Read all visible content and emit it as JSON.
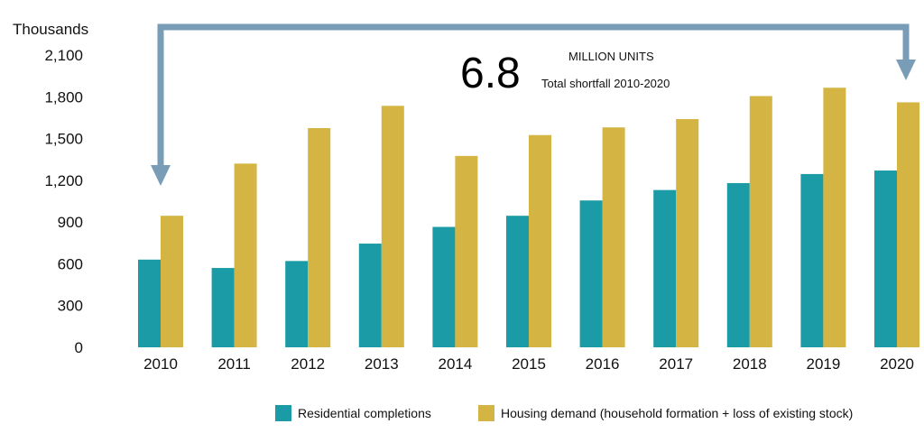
{
  "chart_data": {
    "type": "bar",
    "ylabel": "Thousands",
    "ylim": [
      0,
      2100
    ],
    "yticks": [
      0,
      300,
      600,
      900,
      1200,
      1500,
      1800,
      2100
    ],
    "categories": [
      "2010",
      "2011",
      "2012",
      "2013",
      "2014",
      "2015",
      "2016",
      "2017",
      "2018",
      "2019",
      "2020"
    ],
    "series": [
      {
        "name": "Residential completions",
        "color": "#1a9ba5",
        "values": [
          630,
          570,
          620,
          745,
          865,
          945,
          1055,
          1130,
          1180,
          1245,
          1270
        ]
      },
      {
        "name": "Housing demand (household formation + loss of existing stock)",
        "color": "#d4b442",
        "values": [
          945,
          1320,
          1575,
          1735,
          1375,
          1525,
          1580,
          1640,
          1805,
          1865,
          1760
        ]
      }
    ],
    "annotation": {
      "value": "6.8",
      "unit": "MILLION UNITS",
      "caption": "Total shortfall 2010-2020",
      "arrow_color": "#7a9db7"
    }
  }
}
